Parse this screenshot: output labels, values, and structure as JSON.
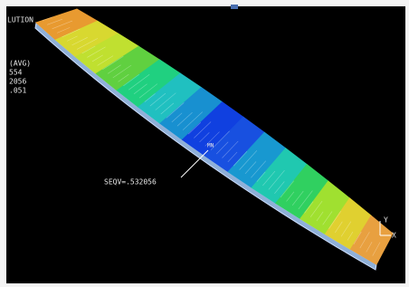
{
  "legend": {
    "title": "LUTION",
    "lines": [
      "(AVG)",
      "554",
      "2056",
      ".051"
    ]
  },
  "annotations": {
    "min_label": "SEQV=.532056",
    "min_marker": "MN"
  },
  "triad": {
    "y": "Y",
    "x": "X"
  }
}
